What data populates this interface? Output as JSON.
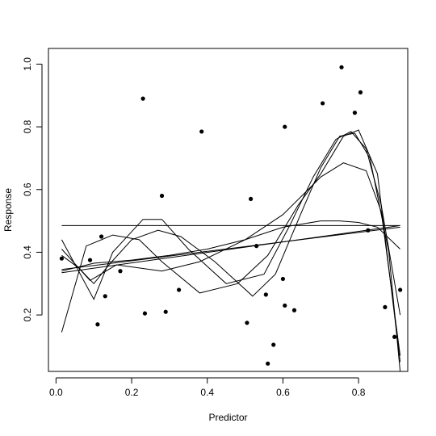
{
  "chart_data": {
    "type": "scatter",
    "title": "",
    "xlabel": "Predictor",
    "ylabel": "Response",
    "xlim": [
      -0.02,
      0.93
    ],
    "ylim": [
      0.02,
      1.05
    ],
    "x_ticks": [
      0.0,
      0.2,
      0.4,
      0.6,
      0.8
    ],
    "x_tick_labels": [
      "0.0",
      "0.2",
      "0.4",
      "0.6",
      "0.8"
    ],
    "y_ticks": [
      0.2,
      0.4,
      0.6,
      0.8,
      1.0
    ],
    "y_tick_labels": [
      "0.2",
      "0.4",
      "0.6",
      "0.8",
      "1.0"
    ],
    "grid": false,
    "legend": "none",
    "point_color": "#000000",
    "line_color": "#000000",
    "points": [
      {
        "x": 0.015,
        "y": 0.38
      },
      {
        "x": 0.09,
        "y": 0.375
      },
      {
        "x": 0.11,
        "y": 0.17
      },
      {
        "x": 0.12,
        "y": 0.45
      },
      {
        "x": 0.13,
        "y": 0.26
      },
      {
        "x": 0.17,
        "y": 0.34
      },
      {
        "x": 0.23,
        "y": 0.89
      },
      {
        "x": 0.235,
        "y": 0.205
      },
      {
        "x": 0.28,
        "y": 0.58
      },
      {
        "x": 0.29,
        "y": 0.21
      },
      {
        "x": 0.325,
        "y": 0.28
      },
      {
        "x": 0.385,
        "y": 0.785
      },
      {
        "x": 0.505,
        "y": 0.175
      },
      {
        "x": 0.515,
        "y": 0.57
      },
      {
        "x": 0.53,
        "y": 0.42
      },
      {
        "x": 0.555,
        "y": 0.265
      },
      {
        "x": 0.56,
        "y": 0.045
      },
      {
        "x": 0.575,
        "y": 0.105
      },
      {
        "x": 0.6,
        "y": 0.315
      },
      {
        "x": 0.605,
        "y": 0.8
      },
      {
        "x": 0.605,
        "y": 0.23
      },
      {
        "x": 0.63,
        "y": 0.215
      },
      {
        "x": 0.705,
        "y": 0.875
      },
      {
        "x": 0.755,
        "y": 0.99
      },
      {
        "x": 0.79,
        "y": 0.845
      },
      {
        "x": 0.805,
        "y": 0.91
      },
      {
        "x": 0.825,
        "y": 0.47
      },
      {
        "x": 0.87,
        "y": 0.225
      },
      {
        "x": 0.895,
        "y": 0.13
      },
      {
        "x": 0.91,
        "y": 0.28
      }
    ],
    "fits": [
      {
        "x": [
          0.015,
          0.91
        ],
        "y": [
          0.485,
          0.485
        ]
      },
      {
        "x": [
          0.015,
          0.91
        ],
        "y": [
          0.335,
          0.485
        ]
      },
      {
        "x": [
          0.015,
          0.91
        ],
        "y": [
          0.345,
          0.48
        ]
      },
      {
        "x": [
          0.015,
          0.1,
          0.2,
          0.3,
          0.4,
          0.5,
          0.6,
          0.7,
          0.75,
          0.8,
          0.85,
          0.91
        ],
        "y": [
          0.34,
          0.365,
          0.375,
          0.39,
          0.41,
          0.44,
          0.48,
          0.5,
          0.5,
          0.495,
          0.48,
          0.41
        ]
      },
      {
        "x": [
          0.015,
          0.09,
          0.16,
          0.28,
          0.38,
          0.5,
          0.6,
          0.7,
          0.76,
          0.82,
          0.86,
          0.91
        ],
        "y": [
          0.41,
          0.31,
          0.36,
          0.34,
          0.37,
          0.44,
          0.52,
          0.64,
          0.685,
          0.66,
          0.53,
          0.07
        ]
      },
      {
        "x": [
          0.015,
          0.08,
          0.15,
          0.22,
          0.28,
          0.38,
          0.48,
          0.56,
          0.64,
          0.7,
          0.76,
          0.8,
          0.85,
          0.91
        ],
        "y": [
          0.145,
          0.42,
          0.455,
          0.44,
          0.37,
          0.27,
          0.3,
          0.39,
          0.55,
          0.65,
          0.77,
          0.79,
          0.65,
          0.05
        ]
      },
      {
        "x": [
          0.015,
          0.1,
          0.15,
          0.23,
          0.28,
          0.35,
          0.45,
          0.55,
          0.62,
          0.68,
          0.74,
          0.78,
          0.82,
          0.86,
          0.91
        ],
        "y": [
          0.44,
          0.25,
          0.4,
          0.505,
          0.505,
          0.41,
          0.3,
          0.33,
          0.49,
          0.64,
          0.76,
          0.785,
          0.73,
          0.55,
          0.2
        ]
      },
      {
        "x": [
          0.015,
          0.06,
          0.1,
          0.14,
          0.2,
          0.27,
          0.33,
          0.42,
          0.52,
          0.58,
          0.65,
          0.7,
          0.75,
          0.79,
          0.83,
          0.88,
          0.91
        ],
        "y": [
          0.39,
          0.35,
          0.3,
          0.36,
          0.44,
          0.47,
          0.45,
          0.37,
          0.26,
          0.33,
          0.53,
          0.67,
          0.77,
          0.78,
          0.7,
          0.4,
          0.02
        ]
      }
    ]
  }
}
